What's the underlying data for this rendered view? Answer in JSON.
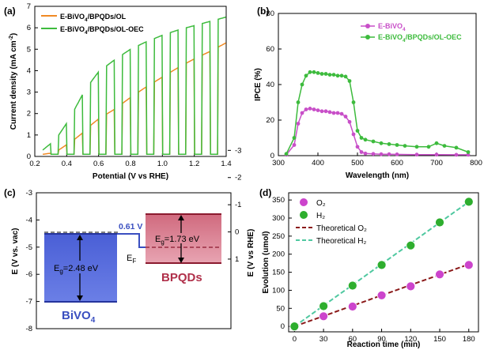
{
  "chart_data": [
    {
      "panel": "(a)",
      "type": "line",
      "xlabel": "Potential (V vs RHE)",
      "ylabel": "Current density (mA cm",
      "ylabel_sup": "-2",
      "ylabel_end": ")",
      "xlim": [
        0.2,
        1.4
      ],
      "ylim": [
        0,
        7
      ],
      "xticks": [
        "0.2",
        "0.4",
        "0.6",
        "0.8",
        "1.0",
        "1.2",
        "1.4"
      ],
      "yticks": [
        "0",
        "1",
        "2",
        "3",
        "4",
        "5",
        "6",
        "7"
      ],
      "legend_position": "top-left",
      "chopped_light": true,
      "dark_current": 0.1,
      "series": [
        {
          "name_parts": [
            "E-BiVO",
            "4",
            "/BPQDs/OL"
          ],
          "color": "#f08a24",
          "x": [
            0.25,
            0.3,
            0.35,
            0.4,
            0.45,
            0.5,
            0.55,
            0.6,
            0.7,
            0.8,
            0.9,
            1.0,
            1.1,
            1.2,
            1.3,
            1.35,
            1.4
          ],
          "y": [
            0.1,
            0.15,
            0.3,
            0.55,
            0.8,
            1.1,
            1.45,
            1.75,
            2.2,
            2.75,
            3.25,
            3.7,
            4.15,
            4.55,
            4.9,
            5.1,
            5.3
          ]
        },
        {
          "name_parts": [
            "E-BiVO",
            "4",
            "/BPQDs/OL-OEC"
          ],
          "color": "#3dbb3d",
          "x": [
            0.25,
            0.3,
            0.35,
            0.4,
            0.45,
            0.5,
            0.55,
            0.6,
            0.7,
            0.8,
            0.9,
            1.0,
            1.1,
            1.2,
            1.3,
            1.35,
            1.4
          ],
          "y": [
            0.3,
            0.6,
            1.0,
            1.55,
            2.2,
            2.9,
            3.45,
            3.95,
            4.5,
            5.0,
            5.35,
            5.65,
            5.9,
            6.1,
            6.3,
            6.4,
            6.5
          ]
        }
      ]
    },
    {
      "panel": "(b)",
      "type": "line",
      "xlabel": "Wavelength (nm)",
      "ylabel": "IPCE (%)",
      "xlim": [
        300,
        800
      ],
      "ylim": [
        0,
        80
      ],
      "xticks": [
        "300",
        "400",
        "500",
        "600",
        "700",
        "800"
      ],
      "yticks": [
        "0",
        "20",
        "40",
        "60",
        "80"
      ],
      "legend_position": "top-right",
      "series": [
        {
          "name_parts": [
            "E-BiVO",
            "4",
            ""
          ],
          "color": "#c84fc8",
          "x": [
            320,
            340,
            350,
            360,
            370,
            380,
            390,
            400,
            410,
            420,
            430,
            440,
            450,
            460,
            470,
            480,
            490,
            500,
            510,
            520,
            540,
            560,
            580,
            600,
            650,
            700,
            750,
            780
          ],
          "y": [
            0.5,
            6,
            18,
            24,
            26,
            26.5,
            26,
            25.5,
            25,
            25,
            24.5,
            24,
            24,
            23.5,
            22,
            19,
            12,
            5,
            2,
            1.2,
            1,
            0.8,
            0.8,
            0.7,
            0.6,
            0.6,
            0.5,
            0.5
          ]
        },
        {
          "name_parts": [
            "E-BiVO",
            "4",
            "/BPQDs/OL-OEC"
          ],
          "color": "#3dbb3d",
          "x": [
            320,
            340,
            350,
            360,
            370,
            380,
            390,
            400,
            410,
            420,
            430,
            440,
            450,
            460,
            470,
            480,
            490,
            500,
            510,
            520,
            540,
            560,
            580,
            600,
            620,
            650,
            680,
            700,
            720,
            750,
            780
          ],
          "y": [
            1,
            10,
            30,
            40,
            45,
            47,
            47,
            46.5,
            46,
            46,
            45.5,
            45.5,
            45,
            45,
            44.5,
            42,
            30,
            14,
            10,
            9,
            8,
            7,
            6.5,
            6,
            5.5,
            5,
            5,
            7,
            5.5,
            4.5,
            2
          ]
        }
      ]
    },
    {
      "panel": "(d)",
      "type": "scatter",
      "xlabel": "Reaction time (min)",
      "ylabel": "Evolution (umol)",
      "xlim": [
        0,
        180
      ],
      "ylim": [
        0,
        350
      ],
      "xticks": [
        "0",
        "30",
        "60",
        "90",
        "120",
        "150",
        "180"
      ],
      "yticks": [
        "0",
        "50",
        "100",
        "150",
        "200",
        "250",
        "300",
        "350"
      ],
      "legend_position": "top-left",
      "series": [
        {
          "name": "O₂",
          "color": "#cc44cc",
          "x": [
            0,
            30,
            60,
            90,
            120,
            150,
            180
          ],
          "y": [
            0,
            28,
            55,
            86,
            111,
            144,
            170
          ]
        },
        {
          "name": "H₂",
          "color": "#2eae2e",
          "x": [
            0,
            30,
            60,
            90,
            120,
            150,
            180
          ],
          "y": [
            0,
            56,
            113,
            170,
            224,
            288,
            345
          ]
        }
      ],
      "lines": [
        {
          "name": "Theoretical O₂",
          "color": "#8b1a1a",
          "x": [
            0,
            180
          ],
          "y": [
            0,
            172
          ]
        },
        {
          "name": "Theoretical H₂",
          "color": "#4fc8a0",
          "x": [
            0,
            180
          ],
          "y": [
            0,
            345
          ]
        }
      ]
    }
  ],
  "diagram": {
    "panel": "(c)",
    "left_axis_label": "E (V vs. vac)",
    "right_axis_label": "E (V vs RHE)",
    "left_ticks": [
      "-3",
      "-4",
      "-5",
      "-6",
      "-7",
      "-8"
    ],
    "right_ticks": [
      "1",
      "0",
      "-1",
      "-2",
      "-3"
    ],
    "bivo4_label": "BiVO",
    "bivo4_sub": "4",
    "bivo4_bandgap": "=2.48 eV",
    "bpqds_label": "BPQDs",
    "bpqds_bandgap": "=1.73 eV",
    "eg_symbol": "E",
    "eg_sub": "g",
    "ef_symbol": "E",
    "ef_sub": "F",
    "offset_label": "0.61 V",
    "bivo4_color": "#3a4fc0",
    "bpqds_color": "#b0304a"
  }
}
